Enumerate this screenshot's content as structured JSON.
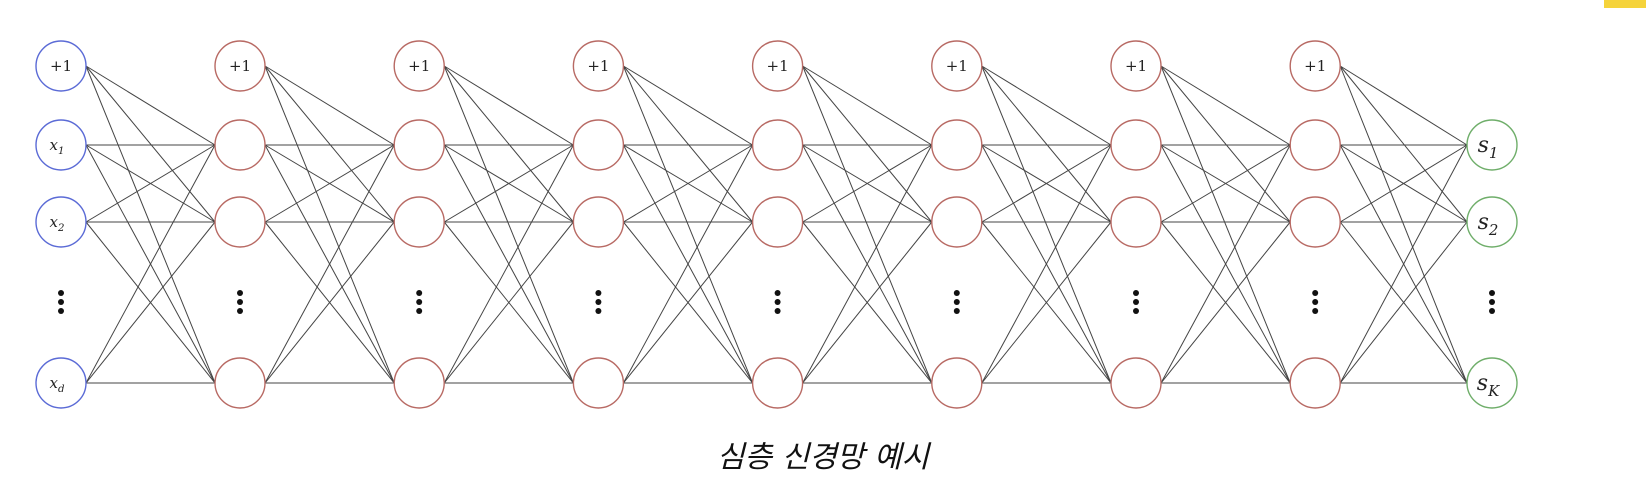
{
  "caption": "심층 신경망 예시",
  "colors": {
    "input": "#5b6bd6",
    "hidden": "#b86a64",
    "output": "#6fae6a",
    "edge": "#444444",
    "accent": "#f5d33b"
  },
  "input_layer": {
    "bias": "+1",
    "nodes": [
      {
        "base": "x",
        "sub": "1"
      },
      {
        "base": "x",
        "sub": "2"
      },
      {
        "base": "x",
        "sub": "d"
      }
    ]
  },
  "hidden_layers": {
    "count": 7,
    "bias": "+1"
  },
  "output_layer": {
    "nodes": [
      {
        "base": "s",
        "sub": "1"
      },
      {
        "base": "s",
        "sub": "2"
      },
      {
        "base": "s",
        "sub": "K"
      }
    ]
  }
}
